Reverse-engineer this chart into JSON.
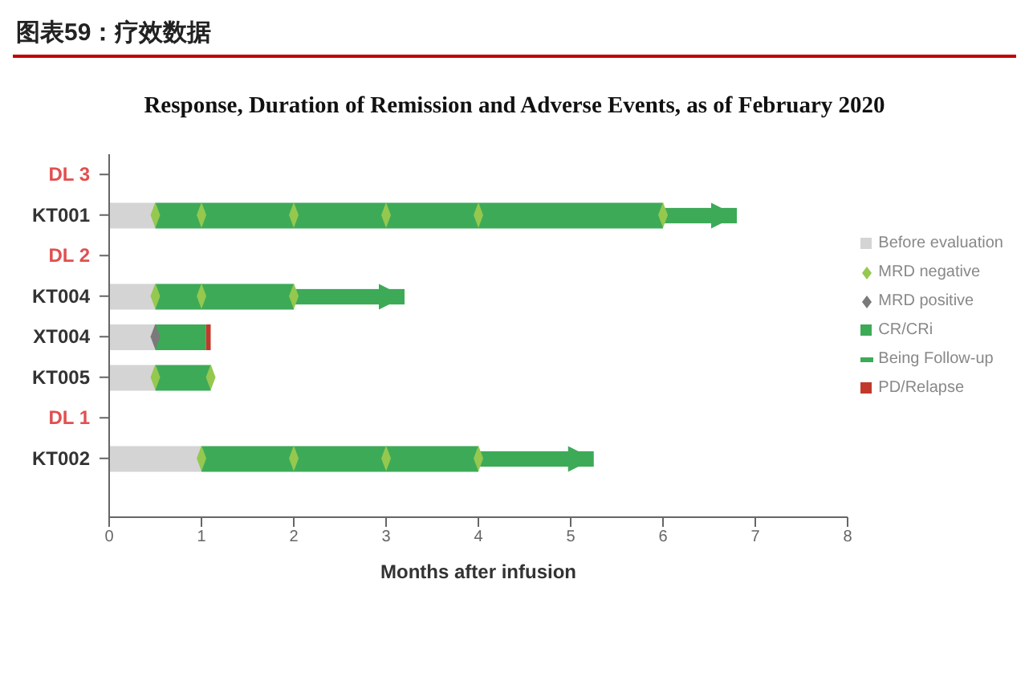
{
  "chart_data": {
    "type": "bar",
    "orientation": "horizontal",
    "stacked": true,
    "title": "图表59：疗效数据",
    "subtitle": "Response, Duration of Remission and Adverse Events, as of February 2020",
    "xlabel": "Months after infusion",
    "categories": [
      "DL 3",
      "KT001",
      "DL 2",
      "KT004",
      "XT004",
      "KT005",
      "DL 1",
      "KT002"
    ],
    "series": [
      {
        "name": "Before evaluation",
        "type": "bar",
        "color": "#d4d4d4",
        "values": [
          null,
          0.5,
          null,
          0.5,
          0.5,
          0.5,
          null,
          1.0
        ]
      },
      {
        "name": "MRD negative",
        "type": "scatter",
        "marker": "diamond",
        "color": "#95c84f",
        "x": [
          "KT001",
          "KT001",
          "KT001",
          "KT001",
          "KT001",
          "KT001",
          "KT004",
          "KT004",
          "KT004",
          "KT005",
          "KT005",
          "KT002",
          "KT002",
          "KT002",
          "KT002"
        ],
        "values": [
          0.5,
          1,
          2,
          3,
          4,
          6,
          0.5,
          1,
          2,
          0.5,
          1.1,
          1,
          2,
          3,
          4
        ]
      },
      {
        "name": "MRD positive",
        "type": "scatter",
        "marker": "diamond",
        "color": "#7a7a7a",
        "x": [
          "XT004"
        ],
        "values": [
          0.5
        ]
      },
      {
        "name": "CR/CRi",
        "type": "bar",
        "color": "#3daa58",
        "values": [
          null,
          5.5,
          null,
          1.5,
          0.55,
          0.6,
          null,
          3.0
        ]
      },
      {
        "name": "Being Follow-up",
        "type": "bar",
        "marker": "triangle",
        "color": "#3daa58",
        "values": [
          null,
          0.8,
          null,
          1.2,
          null,
          null,
          null,
          1.25
        ]
      },
      {
        "name": "PD/Relapse",
        "type": "bar",
        "color": "#c0392b",
        "values": [
          null,
          null,
          null,
          null,
          0.05,
          null,
          null,
          null
        ]
      }
    ],
    "xlim": [
      0,
      8
    ],
    "xticks": [
      0,
      1,
      2,
      3,
      4,
      5,
      6,
      7,
      8
    ],
    "grid": false,
    "legend": "right"
  }
}
